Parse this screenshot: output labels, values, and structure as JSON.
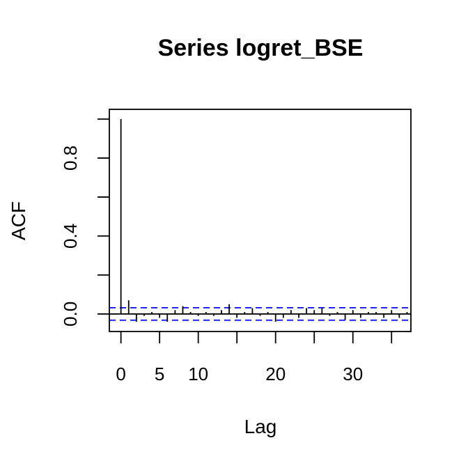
{
  "chart_data": {
    "type": "bar",
    "title": "Series  logret_BSE",
    "xlabel": "Lag",
    "ylabel": "ACF",
    "xlim": [
      -1.5,
      37.5
    ],
    "ylim": [
      -0.09,
      1.05
    ],
    "x_ticks": [
      0,
      5,
      10,
      15,
      20,
      25,
      30,
      35
    ],
    "x_tick_labels": [
      "0",
      "5",
      "10",
      "",
      "20",
      "",
      "30",
      ""
    ],
    "y_ticks": [
      0.0,
      0.2,
      0.4,
      0.6,
      0.8,
      1.0
    ],
    "y_tick_labels": [
      "0.0",
      "",
      "0.4",
      "",
      "0.8",
      ""
    ],
    "lags": [
      0,
      1,
      2,
      3,
      4,
      5,
      6,
      7,
      8,
      9,
      10,
      11,
      12,
      13,
      14,
      15,
      16,
      17,
      18,
      19,
      20,
      21,
      22,
      23,
      24,
      25,
      26,
      27,
      28,
      29,
      30,
      31,
      32,
      33,
      34,
      35,
      36,
      37
    ],
    "acf": [
      1.0,
      0.07,
      -0.04,
      -0.01,
      0.01,
      -0.02,
      -0.04,
      0.02,
      0.04,
      0.01,
      -0.01,
      0.01,
      -0.01,
      0.02,
      0.05,
      -0.02,
      0.01,
      0.03,
      -0.01,
      0.01,
      -0.04,
      -0.02,
      0.02,
      -0.02,
      0.03,
      0.02,
      0.03,
      -0.01,
      0.01,
      -0.03,
      0.02,
      -0.02,
      0.01,
      0.01,
      -0.02,
      0.02,
      -0.02,
      0.01
    ],
    "confidence_bound": 0.032,
    "zero_line_color": "#000000",
    "bar_color": "#000000",
    "ci_color": "#0000ff",
    "grid": false
  }
}
